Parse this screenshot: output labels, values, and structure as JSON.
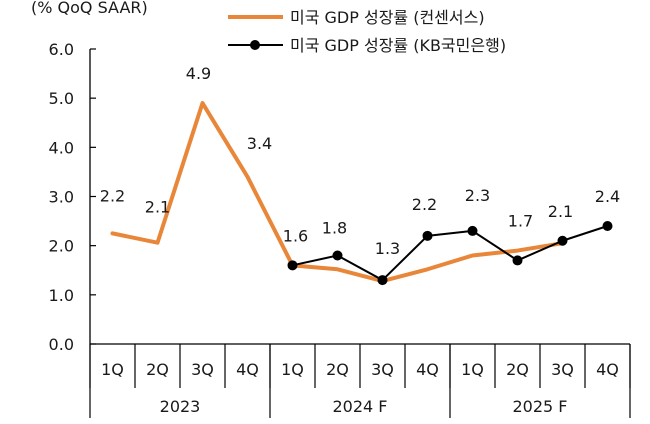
{
  "chart_data": {
    "type": "line",
    "unit_label": "(% QoQ SAAR)",
    "categories": [
      "1Q",
      "2Q",
      "3Q",
      "4Q",
      "1Q",
      "2Q",
      "3Q",
      "4Q",
      "1Q",
      "2Q",
      "3Q",
      "4Q"
    ],
    "year_groups": [
      {
        "label": "2023",
        "start": 0,
        "end": 3
      },
      {
        "label": "2024 F",
        "start": 4,
        "end": 7
      },
      {
        "label": "2025 F",
        "start": 8,
        "end": 11
      }
    ],
    "ylim": [
      0,
      6
    ],
    "yticks": [
      "0.0",
      "1.0",
      "2.0",
      "3.0",
      "4.0",
      "5.0",
      "6.0"
    ],
    "grid": false,
    "legend_position": "top",
    "series": [
      {
        "name": "미국 GDP 성장률 (컨센서스)",
        "color": "#E8873A",
        "marker": false,
        "values": [
          2.25,
          2.06,
          4.9,
          3.4,
          1.6,
          1.52,
          1.28,
          1.52,
          1.8,
          1.9,
          2.05,
          null
        ],
        "data_labels": [
          "2.2",
          "2.1",
          "4.9",
          "3.4",
          null,
          null,
          null,
          null,
          null,
          null,
          null,
          null
        ]
      },
      {
        "name": "미국 GDP 성장률 (KB국민은행)",
        "color": "#000000",
        "marker": true,
        "values": [
          null,
          null,
          null,
          null,
          1.6,
          1.8,
          1.3,
          2.2,
          2.3,
          1.7,
          2.1,
          2.4
        ],
        "data_labels": [
          null,
          null,
          null,
          null,
          "1.6",
          "1.8",
          "1.3",
          "2.2",
          "2.3",
          "1.7",
          "2.1",
          "2.4"
        ]
      }
    ]
  }
}
